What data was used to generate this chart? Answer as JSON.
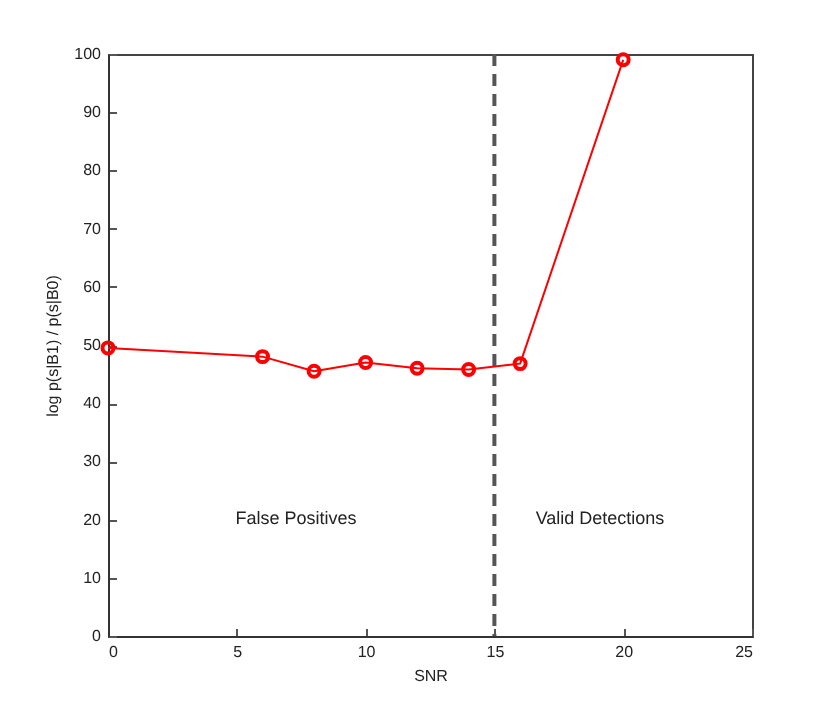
{
  "chart_data": {
    "type": "line",
    "xlabel": "SNR",
    "ylabel": "log p(s|B1) / p(s|B0)",
    "x": [
      0,
      6,
      8,
      10,
      12,
      14,
      16,
      20
    ],
    "series": [
      {
        "color": "#ff0000",
        "values": [
          49.5,
          48,
          45.5,
          47,
          46,
          45.8,
          46.8,
          99
        ]
      }
    ],
    "marker": "circle",
    "line_style": "solid",
    "xlim": [
      0,
      25
    ],
    "xticks": [
      0,
      5,
      10,
      15,
      20,
      25
    ],
    "ylim": [
      0,
      100
    ],
    "yticks": [
      0,
      10,
      20,
      30,
      40,
      50,
      60,
      70,
      80,
      90,
      100
    ],
    "ref_lines": [
      {
        "axis": "x",
        "value": 15,
        "color": "#555555",
        "line_style": "dashed"
      }
    ],
    "annotations": [
      "False Positives",
      "Valid Detections"
    ],
    "grid": false
  }
}
